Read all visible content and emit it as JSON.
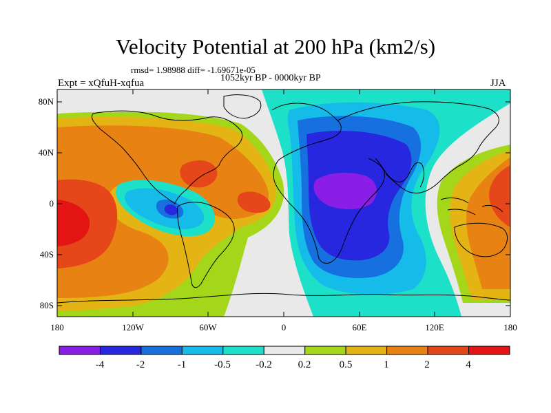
{
  "title": "Velocity Potential at 200 hPa (km2/s)",
  "stats_line": "rmsd= 1.98988 diff= -1.69671e-05",
  "period_line": "1052kyr BP - 0000kyr BP",
  "experiment_label": "Expt = xQfuH-xqfua",
  "season_label": "JJA",
  "axes": {
    "lat_ticks": [
      "80N",
      "40N",
      "0",
      "40S",
      "80S"
    ],
    "lon_ticks": [
      "180",
      "120W",
      "60W",
      "0",
      "60E",
      "120E",
      "180"
    ]
  },
  "colorbar": {
    "labels": [
      "-4",
      "-2",
      "-1",
      "-0.5",
      "-0.2",
      "0.2",
      "0.5",
      "1",
      "2",
      "4"
    ],
    "colors": [
      "#8a1ee6",
      "#2727e0",
      "#1670e0",
      "#15bcea",
      "#1ce0c7",
      "#e9e9e9",
      "#a4d61a",
      "#e4b414",
      "#e78213",
      "#e5461a",
      "#e41414"
    ]
  },
  "colors": {
    "purple": "#8a1ee6",
    "blue": "#2727e0",
    "mid_blue": "#1670e0",
    "light_blue": "#15bcea",
    "teal": "#1ce0c7",
    "neutral": "#e9e9e9",
    "yellow_green": "#a4d61a",
    "gold": "#e4b414",
    "orange": "#e78213",
    "red_orange": "#e5461a",
    "red": "#e41414"
  }
}
